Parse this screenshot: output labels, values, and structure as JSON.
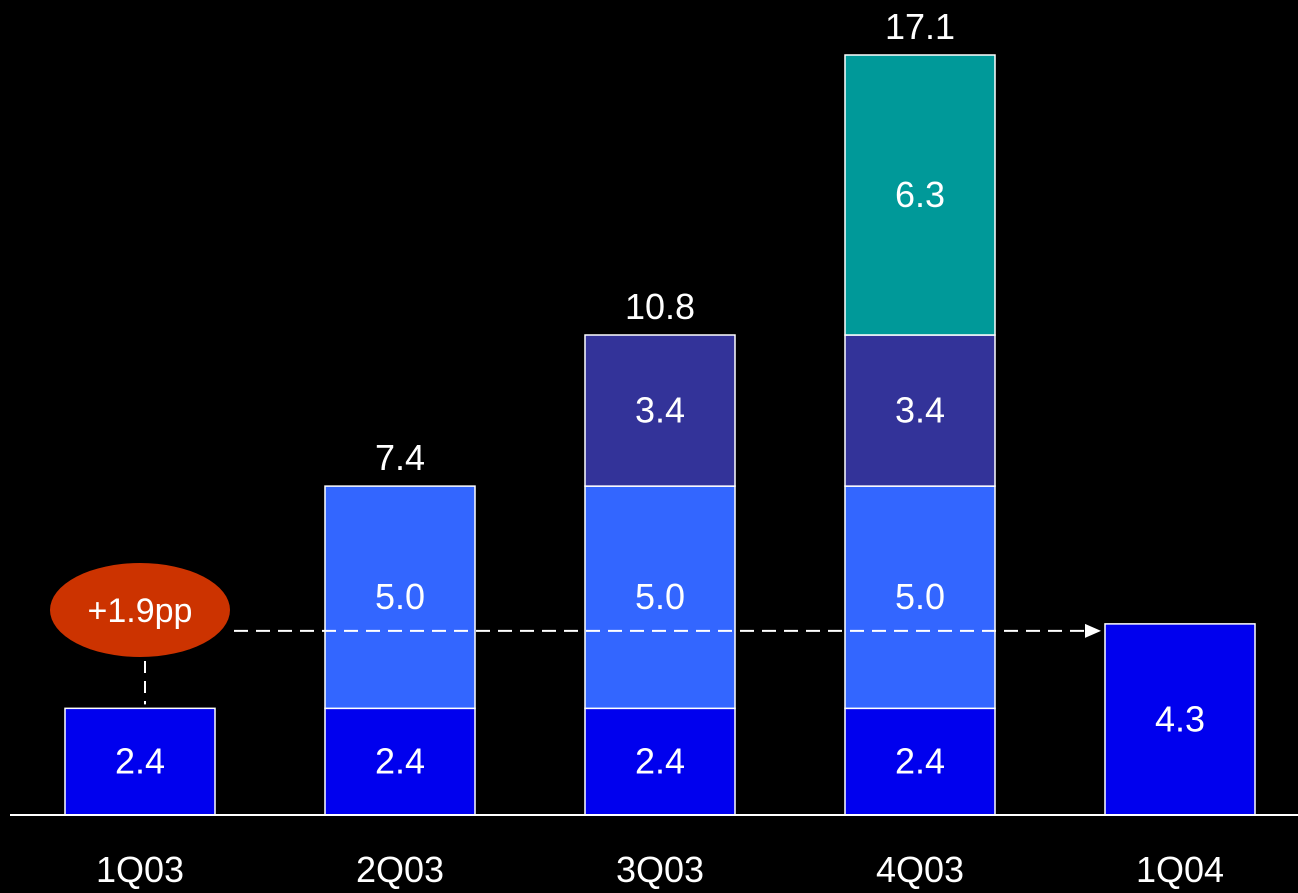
{
  "chart_data": {
    "type": "bar",
    "stacked": true,
    "categories": [
      "1Q03",
      "2Q03",
      "3Q03",
      "4Q03",
      "1Q04"
    ],
    "series": [
      {
        "values": [
          2.4,
          2.4,
          2.4,
          2.4,
          4.3
        ],
        "color": "#0000EE",
        "labels": [
          "2.4",
          "2.4",
          "2.4",
          "2.4",
          "4.3"
        ]
      },
      {
        "values": [
          0,
          5.0,
          5.0,
          5.0,
          0
        ],
        "color": "#3366FF",
        "labels": [
          "",
          "5.0",
          "5.0",
          "5.0",
          ""
        ]
      },
      {
        "values": [
          0,
          0,
          3.4,
          3.4,
          0
        ],
        "color": "#333399",
        "labels": [
          "",
          "",
          "3.4",
          "3.4",
          ""
        ]
      },
      {
        "values": [
          0,
          0,
          0,
          6.3,
          0
        ],
        "color": "#009999",
        "labels": [
          "",
          "",
          "",
          "6.3",
          ""
        ]
      }
    ],
    "totals": [
      "",
      "7.4",
      "10.8",
      "17.1",
      ""
    ],
    "annotation": {
      "text": "+1.9pp",
      "color": "#CC3300",
      "arrow": "dashed",
      "from": "1Q03",
      "to": "1Q04"
    },
    "ylim": [
      0,
      17.1
    ],
    "grid": false,
    "legend": "none",
    "background": "#000000",
    "border_color": "#FFFFFF",
    "label_color": "#FFFFFF"
  }
}
